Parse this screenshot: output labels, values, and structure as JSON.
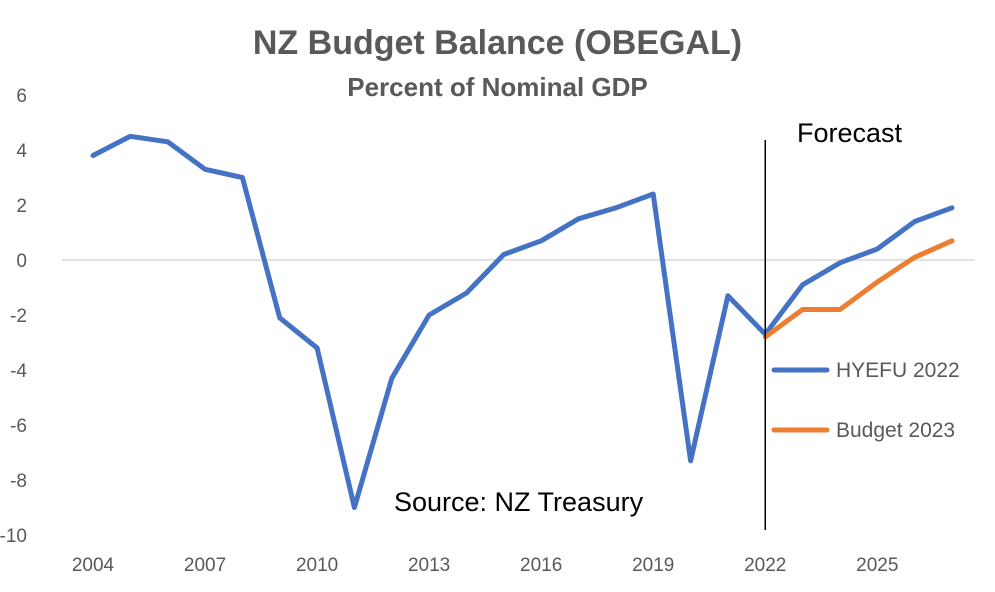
{
  "chart_data": {
    "type": "line",
    "title": "NZ Budget Balance (OBEGAL)",
    "subtitle": "Percent of Nominal GDP",
    "xlabel": "",
    "ylabel": "",
    "xlim": [
      2004,
      2027
    ],
    "ylim": [
      -10,
      6
    ],
    "y_ticks": [
      6,
      4,
      2,
      0,
      -2,
      -4,
      -6,
      -8,
      -10
    ],
    "x_ticks": [
      2004,
      2007,
      2010,
      2013,
      2016,
      2019,
      2022,
      2025
    ],
    "grid": false,
    "legend_position": "right",
    "series": [
      {
        "name": "HYEFU 2022",
        "color": "#4472C4",
        "x": [
          2004,
          2005,
          2006,
          2007,
          2008,
          2009,
          2010,
          2011,
          2012,
          2013,
          2014,
          2015,
          2016,
          2017,
          2018,
          2019,
          2020,
          2021,
          2022,
          2023,
          2024,
          2025,
          2026,
          2027
        ],
        "y": [
          3.8,
          4.5,
          4.3,
          3.3,
          3.0,
          -2.1,
          -3.2,
          -9.0,
          -4.3,
          -2.0,
          -1.2,
          0.2,
          0.7,
          1.5,
          1.9,
          2.4,
          -7.3,
          -1.3,
          -2.7,
          -0.9,
          -0.1,
          0.4,
          1.4,
          1.9
        ]
      },
      {
        "name": "Budget 2023",
        "color": "#ED7D31",
        "x": [
          2022,
          2023,
          2024,
          2025,
          2026,
          2027
        ],
        "y": [
          -2.8,
          -1.8,
          -1.8,
          -0.8,
          0.1,
          0.7
        ]
      }
    ],
    "annotations": {
      "forecast_label": "Forecast",
      "forecast_x": 2022,
      "source": "Source: NZ Treasury"
    }
  }
}
